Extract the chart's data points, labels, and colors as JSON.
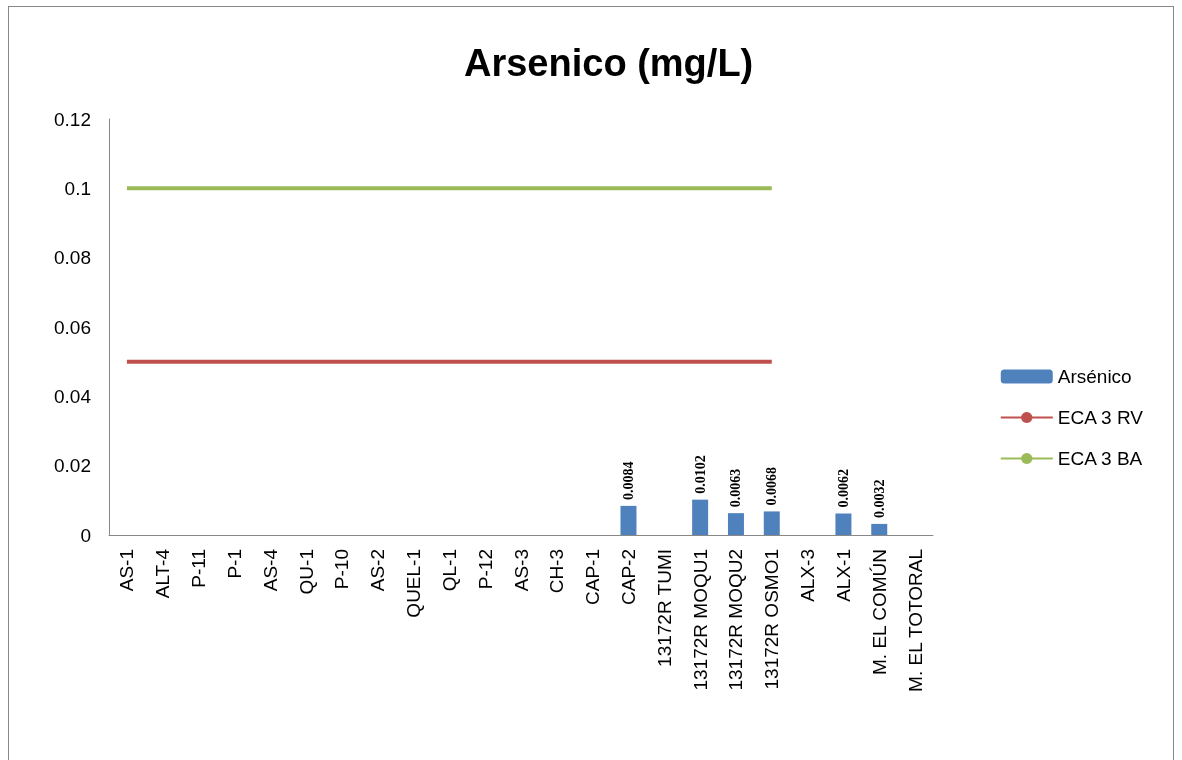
{
  "chart_data": {
    "type": "bar",
    "title": "Arsenico (mg/L)",
    "categories": [
      "AS-1",
      "ALT-4",
      "P-11",
      "P-1",
      "AS-4",
      "QU-1",
      "P-10",
      "AS-2",
      "QUEL-1",
      "QL-1",
      "P-12",
      "AS-3",
      "CH-3",
      "CAP-1",
      "CAP-2",
      "13172R TUMI",
      "13172R MOQU1",
      "13172R MOQU2",
      "13172R OSMO1",
      "ALX-3",
      "ALX-1",
      "M. EL COMÚN",
      "M. EL TOTORAL"
    ],
    "series": [
      {
        "name": "Arsénico",
        "color": "#4f81bd",
        "values": [
          null,
          null,
          null,
          null,
          null,
          null,
          null,
          null,
          null,
          null,
          null,
          null,
          null,
          null,
          0.0084,
          null,
          0.0102,
          0.0063,
          0.0068,
          null,
          0.0062,
          0.0032,
          null
        ],
        "value_labels": [
          null,
          null,
          null,
          null,
          null,
          null,
          null,
          null,
          null,
          null,
          null,
          null,
          null,
          null,
          "0.0084",
          null,
          "0.0102",
          "0.0063",
          "0.0068",
          null,
          "0.0062",
          "0.0032",
          null
        ]
      },
      {
        "name": "ECA 3 RV",
        "type": "line",
        "color": "#c0504d",
        "values": [
          0.05,
          0.05,
          0.05,
          0.05,
          0.05,
          0.05,
          0.05,
          0.05,
          0.05,
          0.05,
          0.05,
          0.05,
          0.05,
          0.05,
          0.05,
          0.05,
          0.05,
          0.05,
          0.05,
          null,
          null,
          null,
          null
        ]
      },
      {
        "name": "ECA 3 BA",
        "type": "line",
        "color": "#9bbb59",
        "values": [
          0.1,
          0.1,
          0.1,
          0.1,
          0.1,
          0.1,
          0.1,
          0.1,
          0.1,
          0.1,
          0.1,
          0.1,
          0.1,
          0.1,
          0.1,
          0.1,
          0.1,
          0.1,
          0.1,
          null,
          null,
          null,
          null
        ]
      }
    ],
    "ylim": [
      0,
      0.12
    ],
    "yticks": [
      0,
      0.02,
      0.04,
      0.06,
      0.08,
      0.1,
      0.12
    ],
    "grid": false,
    "legend": "right",
    "marker": "none",
    "line_style": "solid"
  }
}
